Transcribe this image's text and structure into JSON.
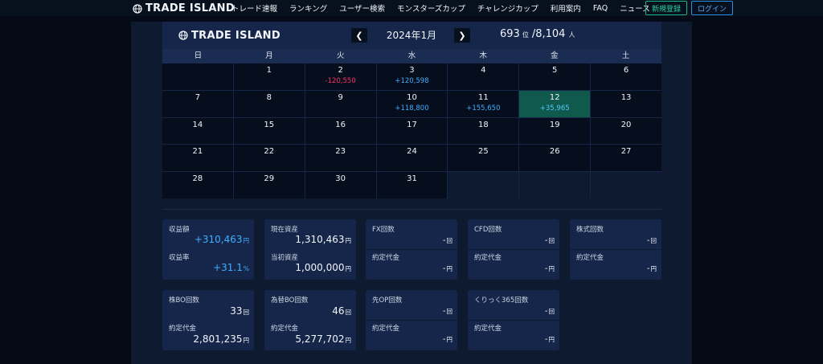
{
  "nav": {
    "brand": "TRADE ISLAND",
    "links": [
      "トレード速報",
      "ランキング",
      "ユーザー検索",
      "モンスターズカップ",
      "チャレンジカップ",
      "利用案内",
      "FAQ",
      "ニュース"
    ],
    "register_label": "新規登録",
    "login_label": "ログイン"
  },
  "calendar": {
    "brand": "TRADE ISLAND",
    "prev_icon": "chevron-left-icon",
    "next_icon": "chevron-right-icon",
    "month": "2024年1月",
    "rank": "693",
    "rank_unit": "位",
    "total": "/8,104",
    "total_unit": "人",
    "weekdays": [
      "日",
      "月",
      "火",
      "水",
      "木",
      "金",
      "土"
    ],
    "cells": [
      {
        "day": "",
        "pl": "",
        "type": ""
      },
      {
        "day": "1",
        "pl": "",
        "type": ""
      },
      {
        "day": "2",
        "pl": "-120,550",
        "type": "neg"
      },
      {
        "day": "3",
        "pl": "+120,598",
        "type": "pos"
      },
      {
        "day": "4",
        "pl": "",
        "type": ""
      },
      {
        "day": "5",
        "pl": "",
        "type": ""
      },
      {
        "day": "6",
        "pl": "",
        "type": ""
      },
      {
        "day": "7",
        "pl": "",
        "type": ""
      },
      {
        "day": "8",
        "pl": "",
        "type": ""
      },
      {
        "day": "9",
        "pl": "",
        "type": ""
      },
      {
        "day": "10",
        "pl": "+118,800",
        "type": "pos"
      },
      {
        "day": "11",
        "pl": "+155,650",
        "type": "pos"
      },
      {
        "day": "12",
        "pl": "+35,965",
        "type": "pos",
        "highlight": true
      },
      {
        "day": "13",
        "pl": "",
        "type": ""
      },
      {
        "day": "14",
        "pl": "",
        "type": ""
      },
      {
        "day": "15",
        "pl": "",
        "type": ""
      },
      {
        "day": "16",
        "pl": "",
        "type": ""
      },
      {
        "day": "17",
        "pl": "",
        "type": ""
      },
      {
        "day": "18",
        "pl": "",
        "type": ""
      },
      {
        "day": "19",
        "pl": "",
        "type": ""
      },
      {
        "day": "20",
        "pl": "",
        "type": ""
      },
      {
        "day": "21",
        "pl": "",
        "type": ""
      },
      {
        "day": "22",
        "pl": "",
        "type": ""
      },
      {
        "day": "23",
        "pl": "",
        "type": ""
      },
      {
        "day": "24",
        "pl": "",
        "type": ""
      },
      {
        "day": "25",
        "pl": "",
        "type": ""
      },
      {
        "day": "26",
        "pl": "",
        "type": ""
      },
      {
        "day": "27",
        "pl": "",
        "type": ""
      },
      {
        "day": "28",
        "pl": "",
        "type": ""
      },
      {
        "day": "29",
        "pl": "",
        "type": ""
      },
      {
        "day": "30",
        "pl": "",
        "type": ""
      },
      {
        "day": "31",
        "pl": "",
        "type": ""
      }
    ]
  },
  "stats": {
    "profit": {
      "label": "収益額",
      "value": "+310,463",
      "unit": "円"
    },
    "profit_rate": {
      "label": "収益率",
      "value": "+31.1",
      "unit": "%"
    },
    "current_assets": {
      "label": "現在資産",
      "value": "1,310,463",
      "unit": "円"
    },
    "initial_assets": {
      "label": "当初資産",
      "value": "1,000,000",
      "unit": "円"
    },
    "fx_count": {
      "label": "FX回数",
      "value": "-",
      "unit": "回"
    },
    "fx_amount": {
      "label": "約定代金",
      "value": "-",
      "unit": "円"
    },
    "cfd_count": {
      "label": "CFD回数",
      "value": "-",
      "unit": "回"
    },
    "cfd_amount": {
      "label": "約定代金",
      "value": "-",
      "unit": "円"
    },
    "stock_count": {
      "label": "株式回数",
      "value": "-",
      "unit": "回"
    },
    "stock_amount": {
      "label": "約定代金",
      "value": "-",
      "unit": "円"
    },
    "stock_bo_count": {
      "label": "株BO回数",
      "value": "33",
      "unit": "回"
    },
    "stock_bo_amount": {
      "label": "約定代金",
      "value": "2,801,235",
      "unit": "円"
    },
    "fx_bo_count": {
      "label": "為替BO回数",
      "value": "46",
      "unit": "回"
    },
    "fx_bo_amount": {
      "label": "約定代金",
      "value": "5,277,702",
      "unit": "円"
    },
    "fut_op_count": {
      "label": "先OP回数",
      "value": "-",
      "unit": "回"
    },
    "fut_op_amount": {
      "label": "約定代金",
      "value": "-",
      "unit": "円"
    },
    "click365_count": {
      "label": "くりっく365回数",
      "value": "-",
      "unit": "回"
    },
    "click365_amount": {
      "label": "約定代金",
      "value": "-",
      "unit": "円"
    }
  }
}
